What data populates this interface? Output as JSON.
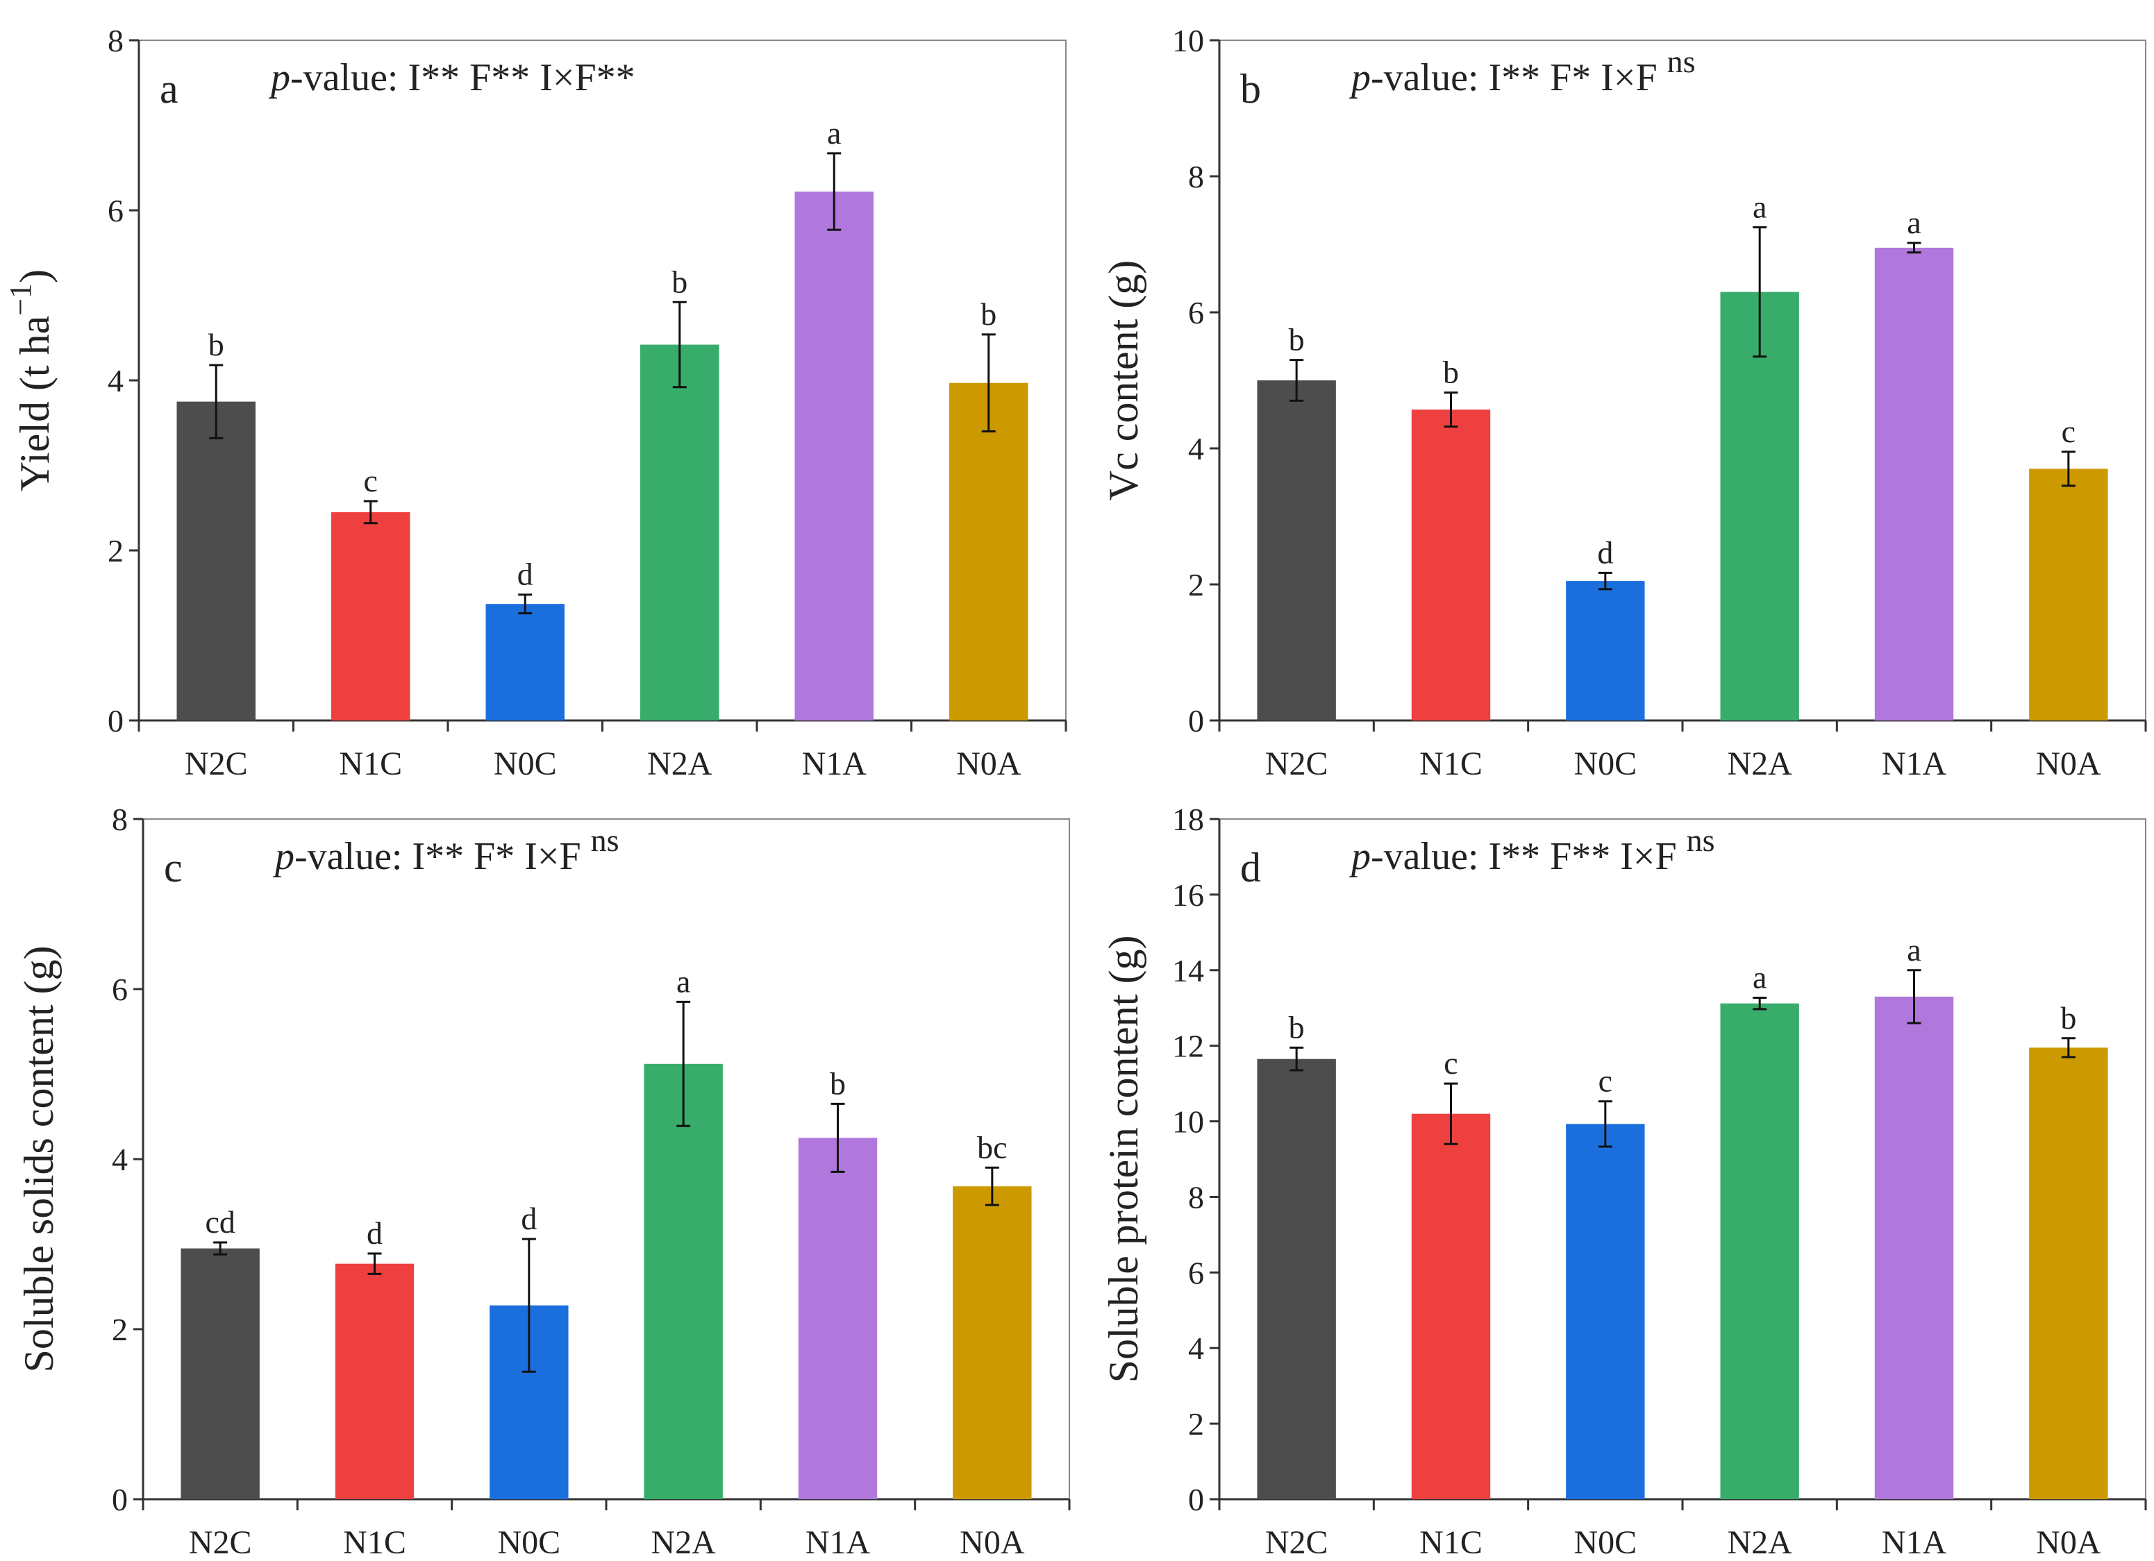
{
  "chart_data": [
    {
      "type": "bar",
      "panel_label": "a",
      "pvalue_prefix": "p",
      "pvalue_text": "-value:  I**  F**  I×F**",
      "pvalue_sup": "",
      "ylabel": "Yield (t ha",
      "ylabel_sup": "−1",
      "ylabel_suffix": ")",
      "ylim": [
        0,
        8
      ],
      "yticks": [
        0,
        2,
        4,
        6,
        8
      ],
      "categories": [
        "N2C",
        "N1C",
        "N0C",
        "N2A",
        "N1A",
        "N0A"
      ],
      "values": [
        3.75,
        2.45,
        1.37,
        4.42,
        6.22,
        3.97
      ],
      "errors": [
        0.43,
        0.13,
        0.11,
        0.5,
        0.45,
        0.57
      ],
      "letters": [
        "b",
        "c",
        "d",
        "b",
        "a",
        "b"
      ]
    },
    {
      "type": "bar",
      "panel_label": "b",
      "pvalue_prefix": "p",
      "pvalue_text": "-value:  I**  F*  I×F ",
      "pvalue_sup": "ns",
      "ylabel": "Vc content (g)",
      "ylabel_sup": "",
      "ylabel_suffix": "",
      "ylim": [
        0,
        10
      ],
      "yticks": [
        0,
        2,
        4,
        6,
        8,
        10
      ],
      "categories": [
        "N2C",
        "N1C",
        "N0C",
        "N2A",
        "N1A",
        "N0A"
      ],
      "values": [
        5.0,
        4.57,
        2.05,
        6.3,
        6.95,
        3.7
      ],
      "errors": [
        0.3,
        0.25,
        0.12,
        0.95,
        0.07,
        0.25
      ],
      "letters": [
        "b",
        "b",
        "d",
        "a",
        "a",
        "c"
      ]
    },
    {
      "type": "bar",
      "panel_label": "c",
      "pvalue_prefix": "p",
      "pvalue_text": "-value:  I**  F*  I×F ",
      "pvalue_sup": "ns",
      "ylabel": "Soluble solids content (g)",
      "ylabel_sup": "",
      "ylabel_suffix": "",
      "ylim": [
        0,
        8
      ],
      "yticks": [
        0,
        2,
        4,
        6,
        8
      ],
      "categories": [
        "N2C",
        "N1C",
        "N0C",
        "N2A",
        "N1A",
        "N0A"
      ],
      "values": [
        2.95,
        2.77,
        2.28,
        5.12,
        4.25,
        3.68
      ],
      "errors": [
        0.07,
        0.12,
        0.78,
        0.73,
        0.4,
        0.22
      ],
      "letters": [
        "cd",
        "d",
        "d",
        "a",
        "b",
        "bc"
      ]
    },
    {
      "type": "bar",
      "panel_label": "d",
      "pvalue_prefix": "p",
      "pvalue_text": "-value:  I**  F**  I×F ",
      "pvalue_sup": "ns",
      "ylabel": "Soluble protein content (g)",
      "ylabel_sup": "",
      "ylabel_suffix": "",
      "ylim": [
        0,
        18
      ],
      "yticks": [
        0,
        2,
        4,
        6,
        8,
        10,
        12,
        14,
        16,
        18
      ],
      "categories": [
        "N2C",
        "N1C",
        "N0C",
        "N2A",
        "N1A",
        "N0A"
      ],
      "values": [
        11.65,
        10.2,
        9.93,
        13.12,
        13.3,
        11.95
      ],
      "errors": [
        0.3,
        0.8,
        0.6,
        0.15,
        0.7,
        0.25
      ],
      "letters": [
        "b",
        "c",
        "c",
        "a",
        "a",
        "b"
      ]
    }
  ],
  "colors": [
    "#4d4d4d",
    "#ef4040",
    "#1b6fdc",
    "#38ad6b",
    "#b077dc",
    "#cc9a00"
  ]
}
